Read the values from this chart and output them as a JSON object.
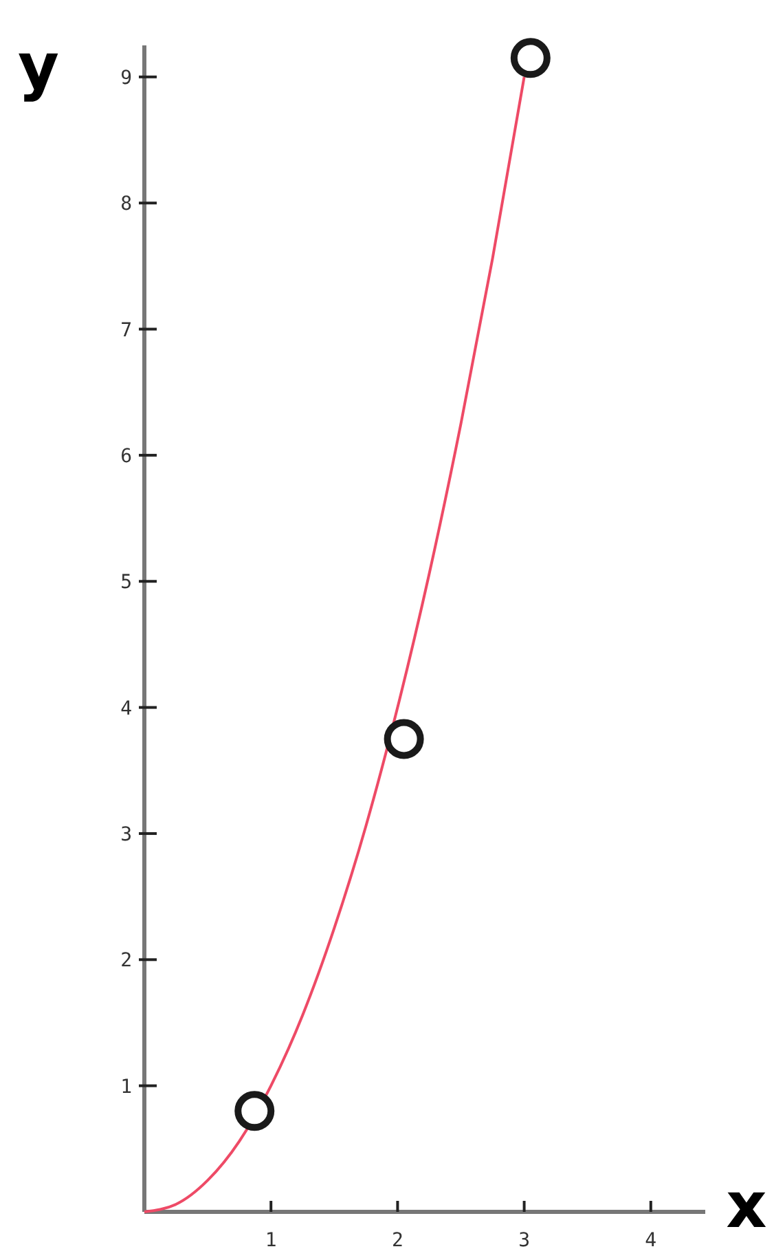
{
  "chart_data": {
    "type": "line",
    "xlabel": "x",
    "ylabel": "y",
    "xlim": [
      0,
      4.43
    ],
    "ylim": [
      0,
      9.25
    ],
    "xticks": [
      1,
      2,
      3,
      4
    ],
    "yticks": [
      1,
      2,
      3,
      4,
      5,
      6,
      7,
      8,
      9
    ],
    "grid": false,
    "series": [
      {
        "color": "#ee4a66",
        "marker": "none",
        "line_style": "solid",
        "x": [
          0,
          0.25,
          0.5,
          0.75,
          1,
          1.25,
          1.5,
          1.75,
          2,
          2.25,
          2.5,
          2.75,
          3
        ],
        "values": [
          0,
          0.06,
          0.25,
          0.56,
          1,
          1.56,
          2.25,
          3.06,
          4,
          5.06,
          6.25,
          7.56,
          9
        ]
      },
      {
        "type": "scatter",
        "color": "#1a1a1a",
        "marker": "circle",
        "x": [
          0.87,
          2.05,
          3.05
        ],
        "values": [
          0.8,
          3.75,
          9.15
        ]
      }
    ]
  }
}
